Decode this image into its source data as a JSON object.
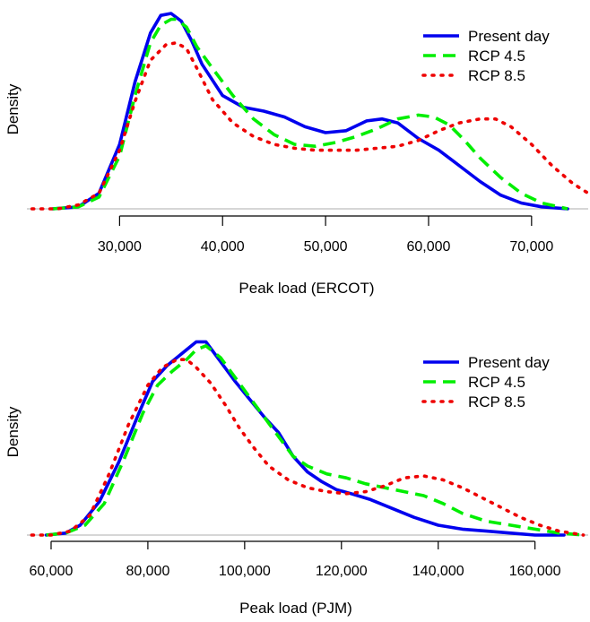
{
  "chart_data": [
    {
      "type": "line",
      "title": "",
      "xlabel": "Peak load (ERCOT)",
      "ylabel": "Density",
      "xlim": [
        21000,
        75500
      ],
      "ylim": [
        0,
        1
      ],
      "x_ticks": [
        30000,
        40000,
        50000,
        60000,
        70000
      ],
      "x_tick_labels": [
        "30,000",
        "40,000",
        "50,000",
        "60,000",
        "70,000"
      ],
      "grid": false,
      "legend_position": "top-right",
      "series": [
        {
          "name": "Present day",
          "color": "#0000ee",
          "style": "solid",
          "x": [
            23500,
            26000,
            28000,
            30000,
            31500,
            33000,
            34000,
            35000,
            36000,
            37000,
            38000,
            40000,
            42000,
            44000,
            46000,
            48000,
            50000,
            52000,
            54000,
            55500,
            57000,
            59000,
            61000,
            63000,
            65000,
            67000,
            69000,
            71000,
            73500
          ],
          "y": [
            0.0,
            0.01,
            0.08,
            0.33,
            0.65,
            0.9,
            0.99,
            1.0,
            0.96,
            0.86,
            0.74,
            0.58,
            0.52,
            0.5,
            0.47,
            0.42,
            0.39,
            0.4,
            0.45,
            0.46,
            0.44,
            0.36,
            0.3,
            0.22,
            0.14,
            0.07,
            0.03,
            0.01,
            0.0
          ]
        },
        {
          "name": "RCP 4.5",
          "color": "#00ee00",
          "style": "dashed",
          "x": [
            23500,
            26000,
            28000,
            30000,
            31500,
            33000,
            34000,
            35000,
            35500,
            36500,
            37500,
            39000,
            41000,
            43000,
            45000,
            47000,
            49000,
            51000,
            53000,
            55000,
            57000,
            59000,
            60500,
            62000,
            63500,
            65000,
            67000,
            69000,
            71000,
            73500
          ],
          "y": [
            0.0,
            0.01,
            0.06,
            0.27,
            0.58,
            0.85,
            0.94,
            0.97,
            0.97,
            0.93,
            0.83,
            0.72,
            0.58,
            0.46,
            0.38,
            0.33,
            0.32,
            0.34,
            0.37,
            0.41,
            0.46,
            0.48,
            0.47,
            0.43,
            0.35,
            0.26,
            0.16,
            0.08,
            0.03,
            0.0
          ]
        },
        {
          "name": "RCP 8.5",
          "color": "#ee0000",
          "style": "dotted",
          "x": [
            21500,
            24000,
            26000,
            28000,
            30000,
            31500,
            33000,
            34500,
            35500,
            36500,
            37500,
            39000,
            41000,
            43000,
            45000,
            47000,
            49000,
            51000,
            53000,
            55000,
            57000,
            59000,
            61000,
            63000,
            65000,
            66500,
            68000,
            70000,
            72000,
            74000,
            75500
          ],
          "y": [
            0.0,
            0.0,
            0.02,
            0.08,
            0.3,
            0.55,
            0.76,
            0.84,
            0.85,
            0.82,
            0.72,
            0.56,
            0.44,
            0.37,
            0.33,
            0.31,
            0.3,
            0.3,
            0.3,
            0.31,
            0.32,
            0.35,
            0.4,
            0.44,
            0.46,
            0.46,
            0.42,
            0.33,
            0.22,
            0.13,
            0.08
          ]
        }
      ]
    },
    {
      "type": "line",
      "title": "",
      "xlabel": "Peak load (PJM)",
      "ylabel": "Density",
      "xlim": [
        55000,
        171000
      ],
      "ylim": [
        0,
        1
      ],
      "x_ticks": [
        60000,
        80000,
        100000,
        120000,
        140000,
        160000
      ],
      "x_tick_labels": [
        "60,000",
        "80,000",
        "100,000",
        "120,000",
        "140,000",
        "160,000"
      ],
      "grid": false,
      "legend_position": "top-right",
      "series": [
        {
          "name": "Present day",
          "color": "#0000ee",
          "style": "solid",
          "x": [
            59000,
            63000,
            66000,
            70000,
            74000,
            78000,
            81000,
            84000,
            86000,
            88000,
            90000,
            92000,
            95000,
            98000,
            101000,
            104000,
            107000,
            110000,
            113000,
            116000,
            119000,
            122000,
            126000,
            130000,
            135000,
            140000,
            145000,
            150000,
            155000,
            160000,
            166000
          ],
          "y": [
            0.0,
            0.01,
            0.05,
            0.17,
            0.37,
            0.61,
            0.78,
            0.86,
            0.9,
            0.94,
            0.98,
            0.98,
            0.88,
            0.78,
            0.69,
            0.6,
            0.52,
            0.4,
            0.32,
            0.27,
            0.23,
            0.21,
            0.18,
            0.14,
            0.09,
            0.05,
            0.03,
            0.02,
            0.01,
            0.0,
            0.0
          ]
        },
        {
          "name": "RCP 4.5",
          "color": "#00ee00",
          "style": "dashed",
          "x": [
            59000,
            63000,
            67000,
            71000,
            75000,
            79000,
            82000,
            85000,
            88000,
            90000,
            92000,
            95000,
            98000,
            101000,
            104000,
            107000,
            110000,
            113000,
            117000,
            121000,
            125000,
            129000,
            133000,
            137000,
            141000,
            145000,
            150000,
            155000,
            160000,
            165000,
            170000
          ],
          "y": [
            0.0,
            0.01,
            0.05,
            0.16,
            0.38,
            0.62,
            0.76,
            0.83,
            0.89,
            0.94,
            0.96,
            0.9,
            0.8,
            0.7,
            0.6,
            0.5,
            0.4,
            0.35,
            0.31,
            0.29,
            0.26,
            0.24,
            0.22,
            0.2,
            0.16,
            0.11,
            0.07,
            0.05,
            0.03,
            0.01,
            0.0
          ]
        },
        {
          "name": "RCP 8.5",
          "color": "#ee0000",
          "style": "dotted",
          "x": [
            56000,
            60000,
            64000,
            68000,
            72000,
            76000,
            80000,
            83000,
            86000,
            88000,
            90000,
            93000,
            96000,
            99000,
            102000,
            105000,
            109000,
            113000,
            117000,
            121000,
            125000,
            129000,
            133000,
            137000,
            141000,
            145000,
            149000,
            153000,
            157000,
            161000,
            165000,
            170000
          ],
          "y": [
            0.0,
            0.0,
            0.02,
            0.1,
            0.31,
            0.56,
            0.76,
            0.85,
            0.89,
            0.89,
            0.85,
            0.77,
            0.66,
            0.54,
            0.44,
            0.35,
            0.28,
            0.24,
            0.22,
            0.21,
            0.22,
            0.25,
            0.29,
            0.3,
            0.28,
            0.24,
            0.19,
            0.14,
            0.09,
            0.05,
            0.02,
            0.0
          ]
        }
      ]
    }
  ]
}
